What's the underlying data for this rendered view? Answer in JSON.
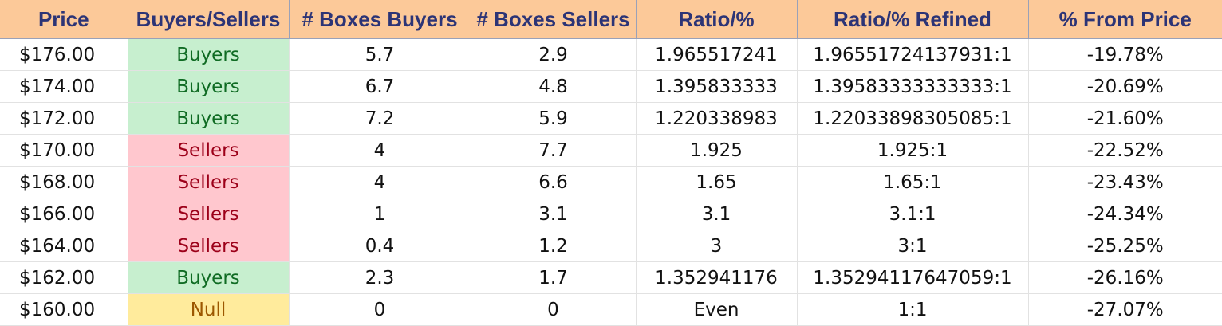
{
  "headers": {
    "price": "Price",
    "side": "Buyers/Sellers",
    "boxes_buyers": "# Boxes Buyers",
    "boxes_sellers": "# Boxes Sellers",
    "ratio": "Ratio/%",
    "ratio_refined": "Ratio/% Refined",
    "pct_from_price": "% From Price"
  },
  "colors": {
    "header_bg": "#fcc999",
    "header_text": "#2c3476",
    "buyers_bg": "#c7efcf",
    "buyers_text": "#0f6b23",
    "sellers_bg": "#ffc7ce",
    "sellers_text": "#9c0019",
    "null_bg": "#ffeb9c",
    "null_text": "#9c5700"
  },
  "rows": [
    {
      "price": "$176.00",
      "side": "Buyers",
      "boxes_buyers": "5.7",
      "boxes_sellers": "2.9",
      "ratio": "1.965517241",
      "ratio_refined": "1.96551724137931:1",
      "pct_from_price": "-19.78%"
    },
    {
      "price": "$174.00",
      "side": "Buyers",
      "boxes_buyers": "6.7",
      "boxes_sellers": "4.8",
      "ratio": "1.395833333",
      "ratio_refined": "1.39583333333333:1",
      "pct_from_price": "-20.69%"
    },
    {
      "price": "$172.00",
      "side": "Buyers",
      "boxes_buyers": "7.2",
      "boxes_sellers": "5.9",
      "ratio": "1.220338983",
      "ratio_refined": "1.22033898305085:1",
      "pct_from_price": "-21.60%"
    },
    {
      "price": "$170.00",
      "side": "Sellers",
      "boxes_buyers": "4",
      "boxes_sellers": "7.7",
      "ratio": "1.925",
      "ratio_refined": "1.925:1",
      "pct_from_price": "-22.52%"
    },
    {
      "price": "$168.00",
      "side": "Sellers",
      "boxes_buyers": "4",
      "boxes_sellers": "6.6",
      "ratio": "1.65",
      "ratio_refined": "1.65:1",
      "pct_from_price": "-23.43%"
    },
    {
      "price": "$166.00",
      "side": "Sellers",
      "boxes_buyers": "1",
      "boxes_sellers": "3.1",
      "ratio": "3.1",
      "ratio_refined": "3.1:1",
      "pct_from_price": "-24.34%"
    },
    {
      "price": "$164.00",
      "side": "Sellers",
      "boxes_buyers": "0.4",
      "boxes_sellers": "1.2",
      "ratio": "3",
      "ratio_refined": "3:1",
      "pct_from_price": "-25.25%"
    },
    {
      "price": "$162.00",
      "side": "Buyers",
      "boxes_buyers": "2.3",
      "boxes_sellers": "1.7",
      "ratio": "1.352941176",
      "ratio_refined": "1.35294117647059:1",
      "pct_from_price": "-26.16%"
    },
    {
      "price": "$160.00",
      "side": "Null",
      "boxes_buyers": "0",
      "boxes_sellers": "0",
      "ratio": "Even",
      "ratio_refined": "1:1",
      "pct_from_price": "-27.07%"
    }
  ]
}
